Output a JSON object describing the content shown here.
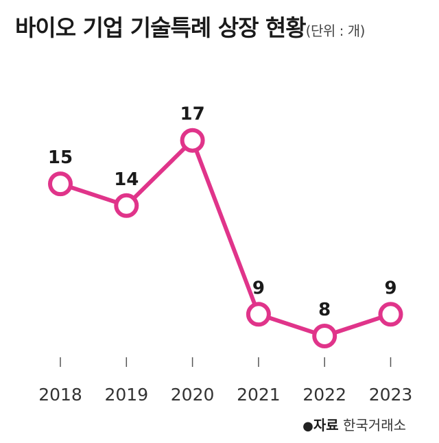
{
  "title": "바이오 기업 기술특례 상장 현황",
  "unit": "(단위 : 개)",
  "source": {
    "label": "자료",
    "value": "한국거래소"
  },
  "colors": {
    "line": "#e0348a",
    "text": "#1a1a1a",
    "axis": "#555555"
  },
  "chart_data": {
    "type": "line",
    "categories": [
      "2018",
      "2019",
      "2020",
      "2021",
      "2022",
      "2023"
    ],
    "values": [
      15,
      14,
      17,
      9,
      8,
      9
    ],
    "data_labels": [
      "15",
      "14",
      "17",
      "9",
      "8",
      "9"
    ],
    "title": "바이오 기업 기술특례 상장 현황",
    "xlabel": "",
    "ylabel": "",
    "grid": false,
    "markers": "hollow-circle"
  }
}
